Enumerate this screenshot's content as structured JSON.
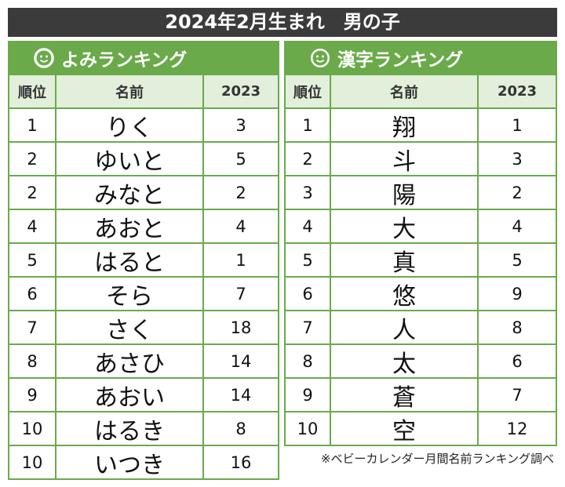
{
  "title": "2024年2月生まれ　男の子",
  "tables": [
    {
      "heading": "よみランキング",
      "columns": [
        "順位",
        "名前",
        "2023"
      ],
      "rows": [
        [
          1,
          "りく",
          3
        ],
        [
          2,
          "ゆいと",
          5
        ],
        [
          2,
          "みなと",
          2
        ],
        [
          4,
          "あおと",
          4
        ],
        [
          5,
          "はると",
          1
        ],
        [
          6,
          "そら",
          7
        ],
        [
          7,
          "さく",
          18
        ],
        [
          8,
          "あさひ",
          14
        ],
        [
          9,
          "あおい",
          14
        ],
        [
          10,
          "はるき",
          8
        ],
        [
          10,
          "いつき",
          16
        ]
      ]
    },
    {
      "heading": "漢字ランキング",
      "columns": [
        "順位",
        "名前",
        "2023"
      ],
      "rows": [
        [
          1,
          "翔",
          1
        ],
        [
          2,
          "斗",
          3
        ],
        [
          3,
          "陽",
          2
        ],
        [
          4,
          "大",
          4
        ],
        [
          5,
          "真",
          5
        ],
        [
          6,
          "悠",
          9
        ],
        [
          7,
          "人",
          8
        ],
        [
          8,
          "太",
          6
        ],
        [
          9,
          "蒼",
          7
        ],
        [
          10,
          "空",
          12
        ]
      ]
    }
  ],
  "footnote": "※ベビーカレンダー月間名前ランキング調べ"
}
